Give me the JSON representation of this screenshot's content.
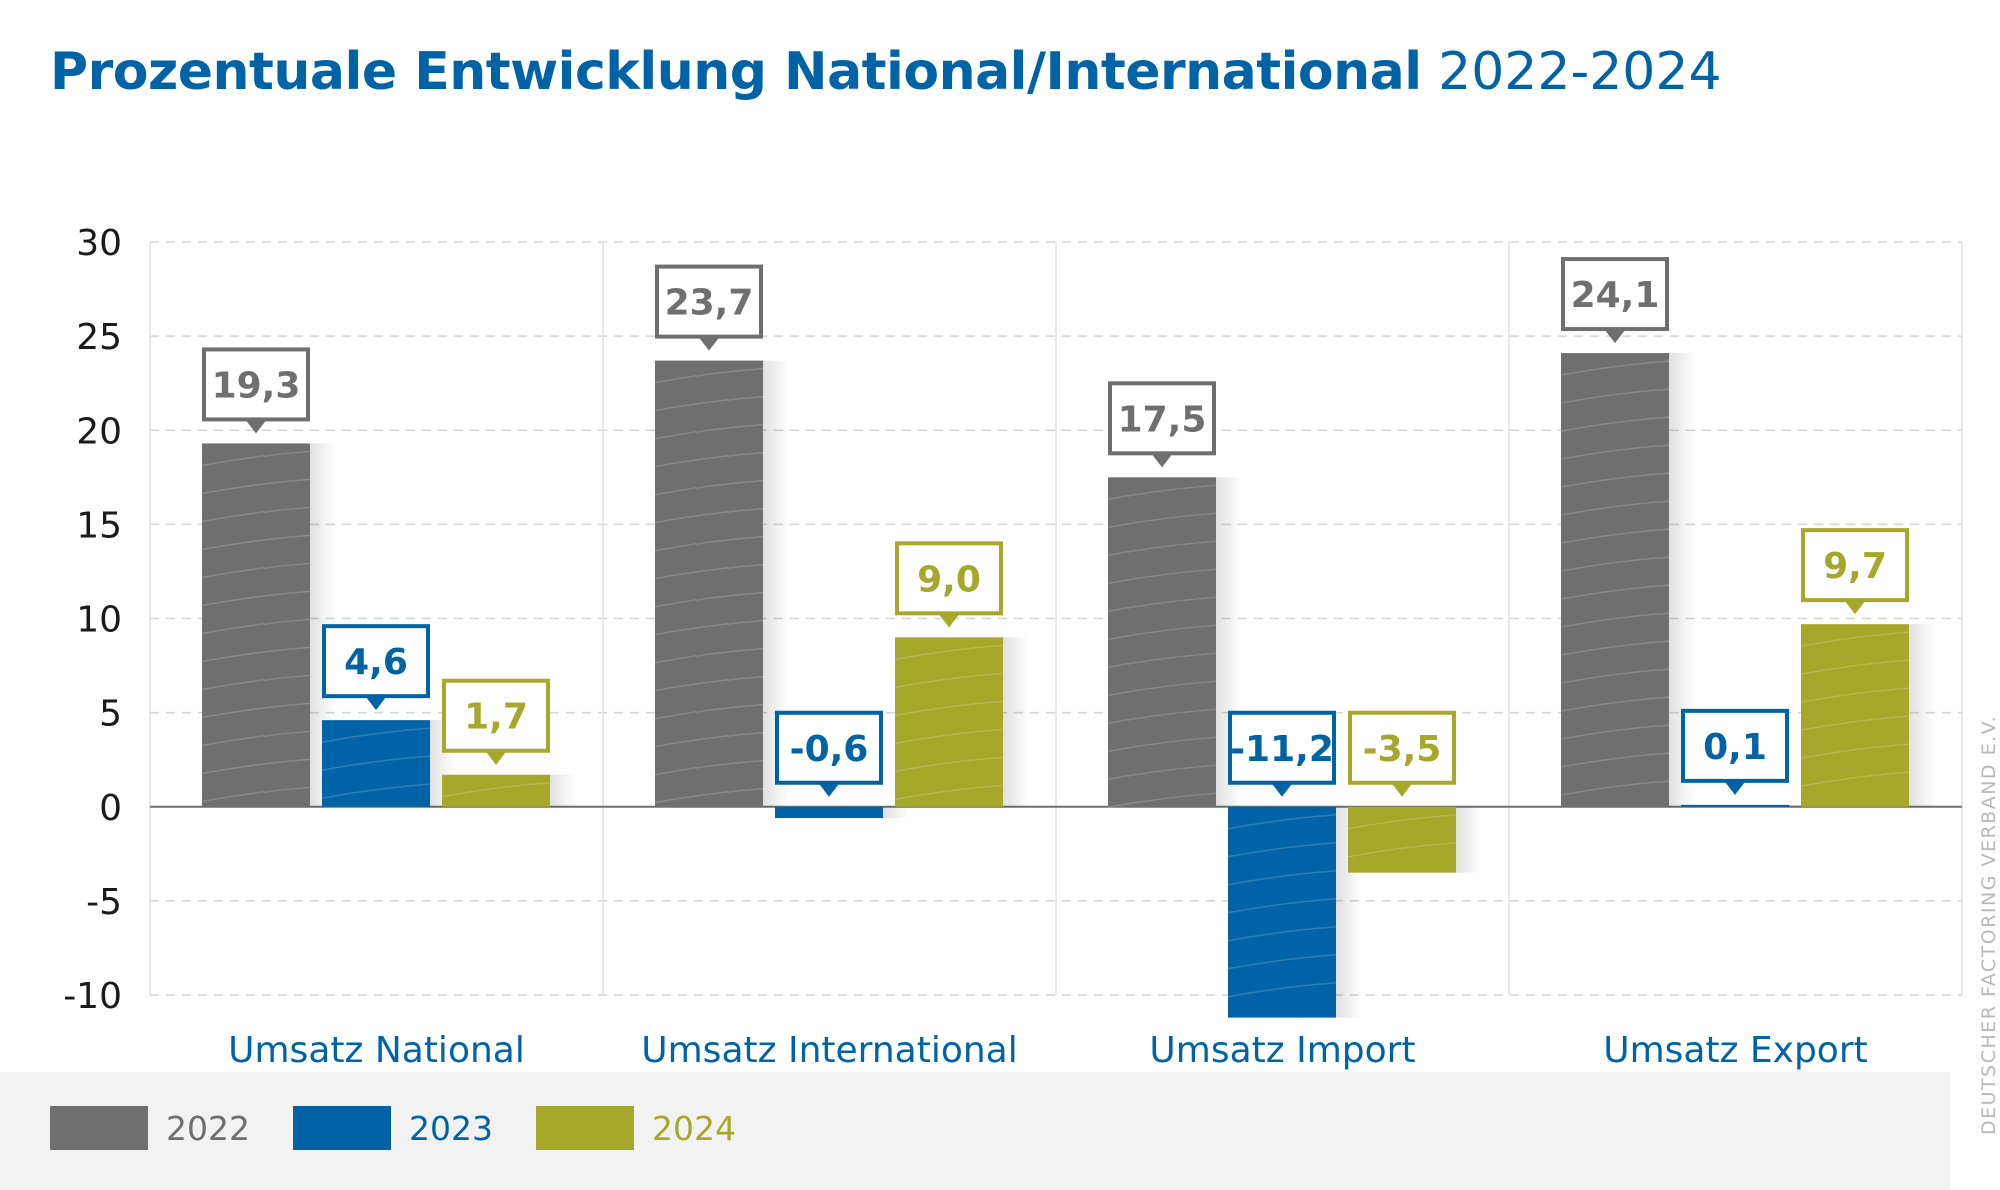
{
  "title": {
    "main": "Prozentuale Entwicklung National/International",
    "years": "2022-2024"
  },
  "credit": "DEUTSCHER FACTORING VERBAND E.V.",
  "colors": {
    "2022": "#6f6f70",
    "2023": "#0063a6",
    "2024": "#a5a82a",
    "category": "#0063a6",
    "axis_text": "#1a1a1a"
  },
  "chart_data": {
    "type": "bar",
    "title": "Prozentuale Entwicklung National/International 2022-2024",
    "categories": [
      "Umsatz National",
      "Umsatz International",
      "Umsatz Import",
      "Umsatz Export"
    ],
    "series": [
      {
        "name": "2022",
        "values": [
          19.3,
          23.7,
          17.5,
          24.1
        ],
        "labels": [
          "19,3",
          "23,7",
          "17,5",
          "24,1"
        ]
      },
      {
        "name": "2023",
        "values": [
          4.6,
          -0.6,
          -11.2,
          0.1
        ],
        "labels": [
          "4,6",
          "-0,6",
          "-11,2",
          "0,1"
        ]
      },
      {
        "name": "2024",
        "values": [
          1.7,
          9.0,
          -3.5,
          9.7
        ],
        "labels": [
          "1,7",
          "9,0",
          "-3,5",
          "9,7"
        ]
      }
    ],
    "yticks": [
      30,
      25,
      20,
      15,
      10,
      5,
      0,
      -5,
      -10
    ],
    "ylim": [
      -10,
      30
    ],
    "grid": true,
    "legend": "bottom-left"
  }
}
